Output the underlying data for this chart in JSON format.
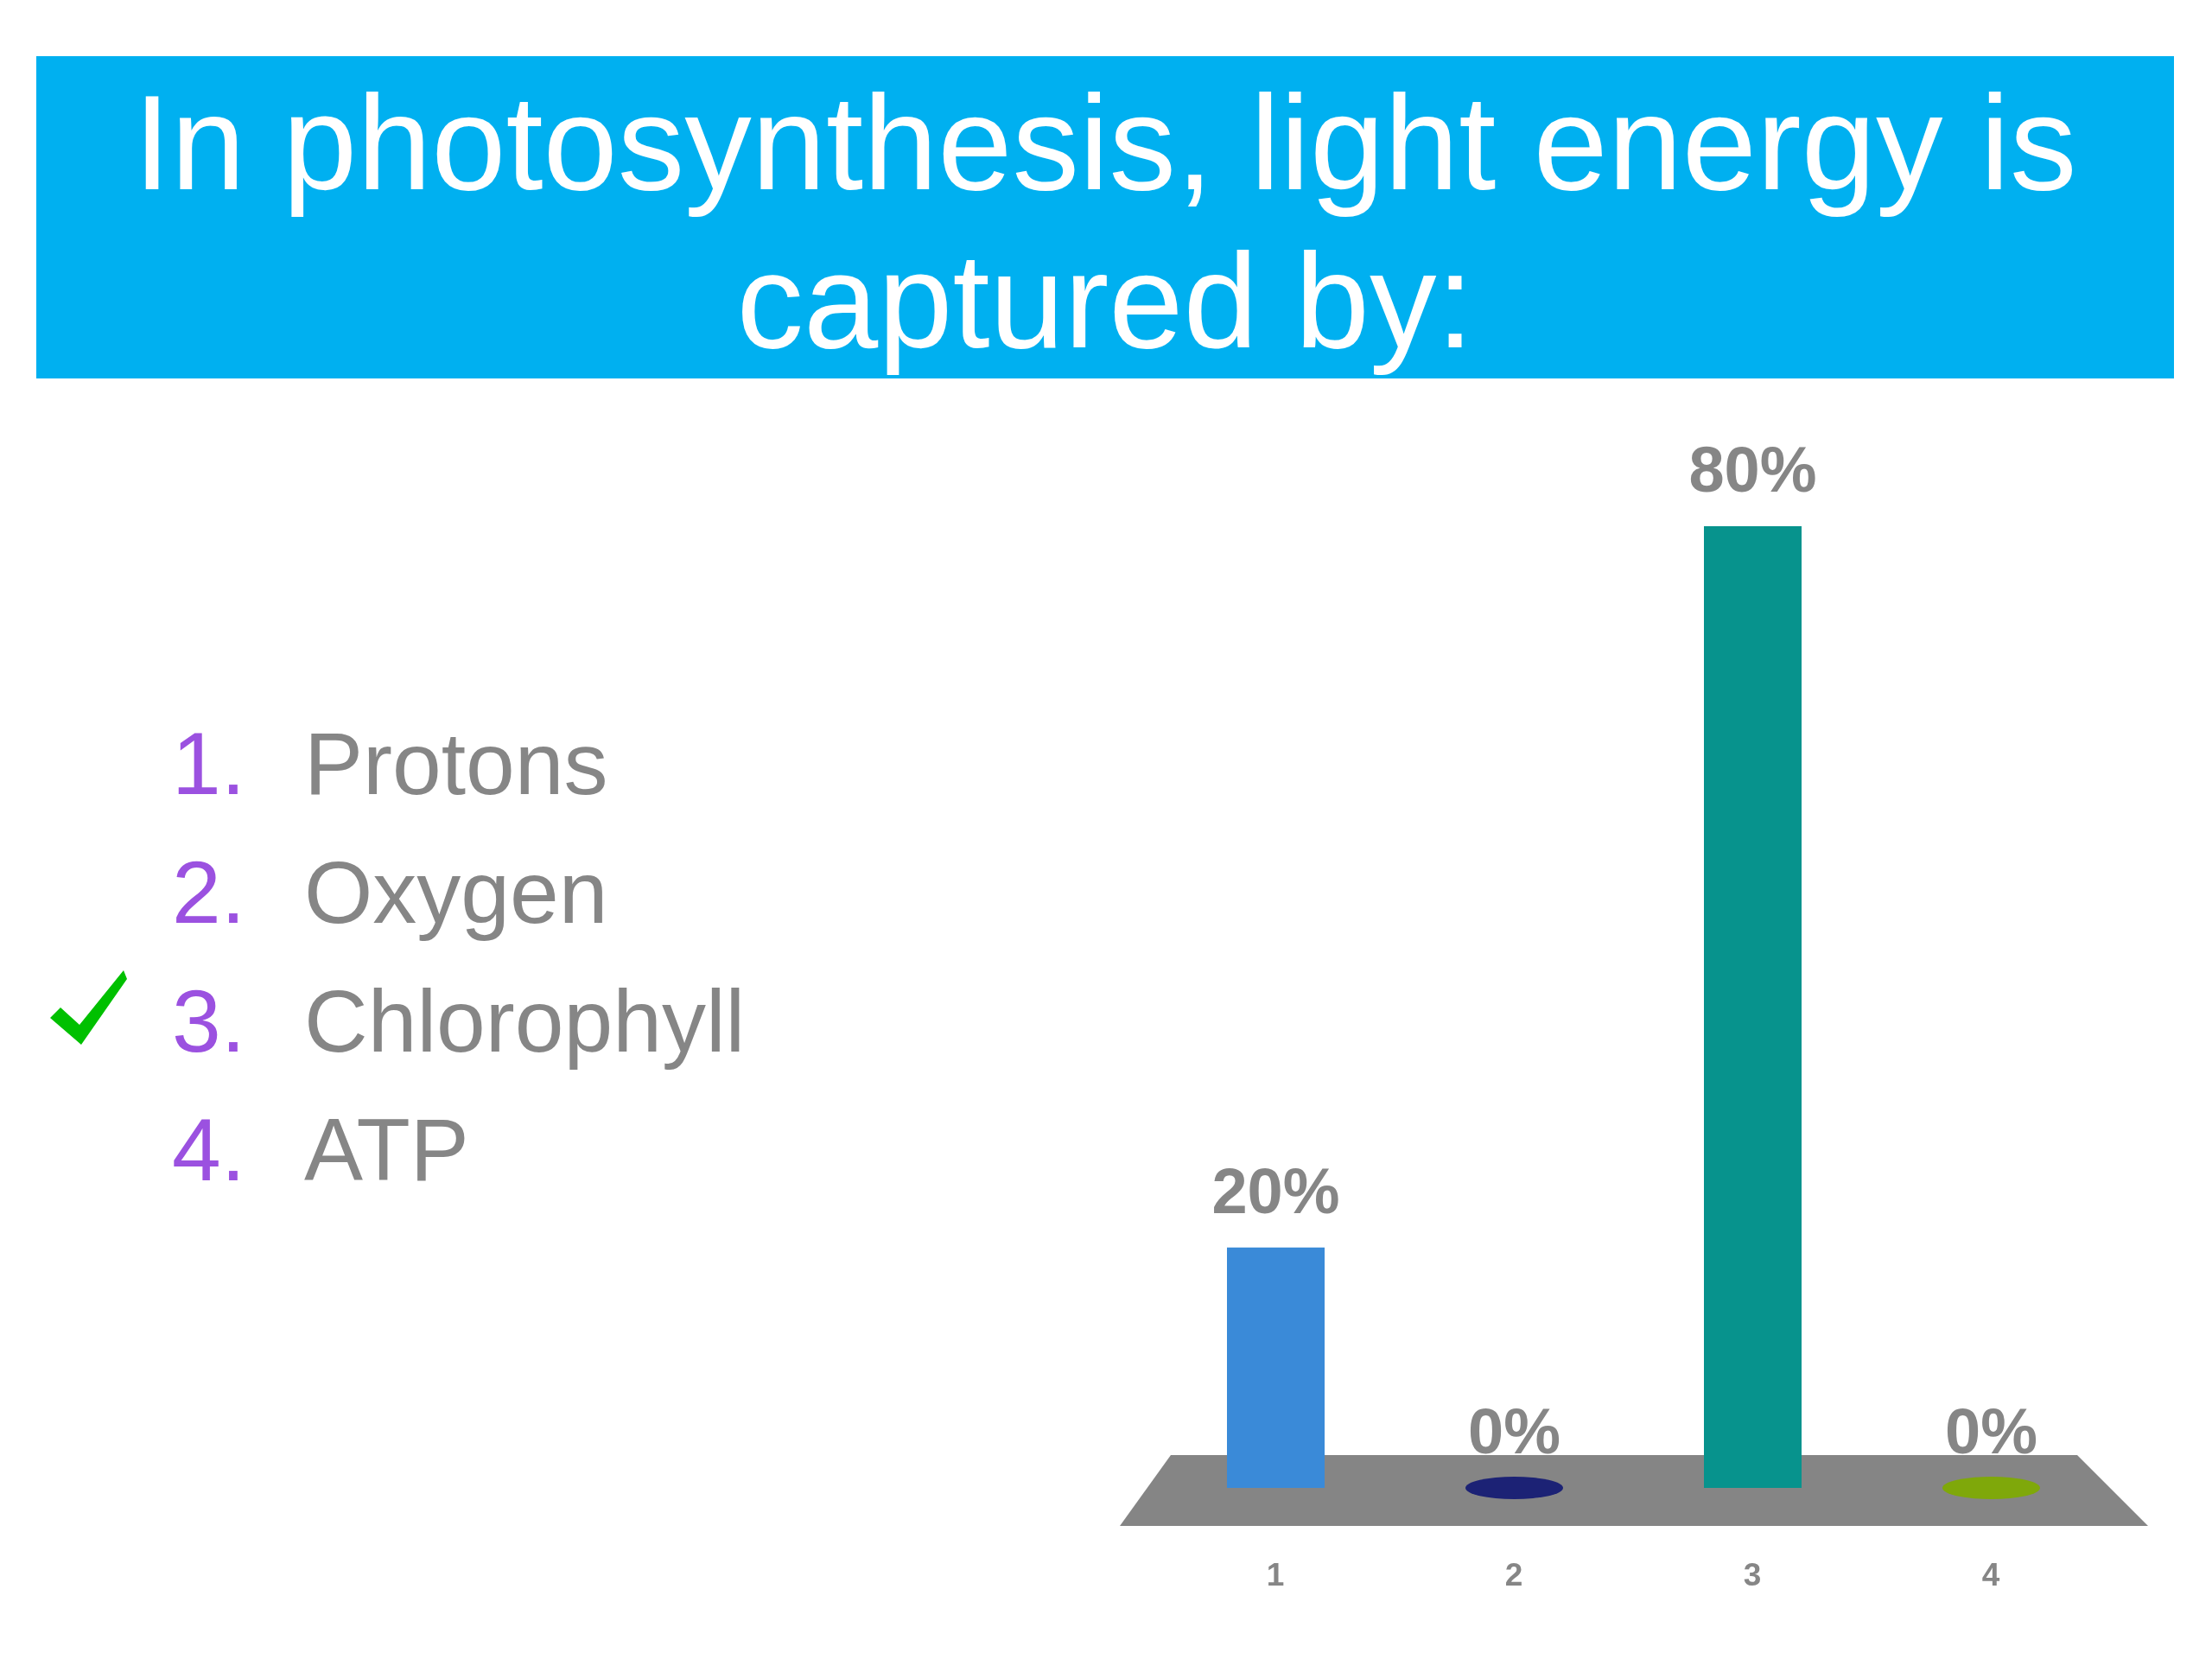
{
  "chart_data": {
    "type": "bar",
    "title": "In photosynthesis, light energy is captured by:",
    "categories": [
      "1",
      "2",
      "3",
      "4"
    ],
    "values": [
      20,
      0,
      80,
      0
    ],
    "colors": [
      "#3a8ad8",
      "#1c2275",
      "#07938d",
      "#7fa80a"
    ],
    "value_labels": [
      "20%",
      "0%",
      "80%",
      "0%"
    ],
    "tick_labels": "x",
    "annotations": [
      "1. Protons",
      "2. Oxygen",
      "3. Chlorophyll",
      "4. ATP"
    ]
  }
}
